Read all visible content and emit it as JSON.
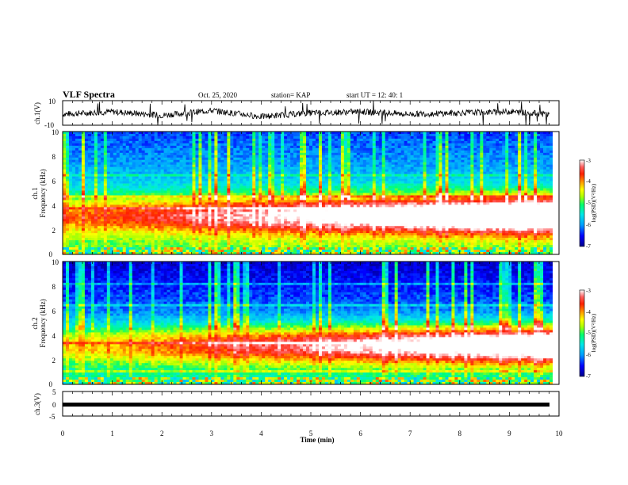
{
  "header": {
    "title": "VLF Spectra",
    "date": "Oct. 25, 2020",
    "station": "station= KAP",
    "start": "start  UT  =   12: 40: 1"
  },
  "colors": {
    "spectral_scale": [
      "#00008b",
      "#0000ff",
      "#0080ff",
      "#00e0e0",
      "#00ff80",
      "#9cff00",
      "#ffff00",
      "#ffa500",
      "#ff3000",
      "#ff2020",
      "#ffffff"
    ]
  },
  "chart_data": [
    {
      "type": "line",
      "panel": "ch.1 waveform",
      "ylabel": "ch.1(V)",
      "ylim": [
        -10,
        10
      ],
      "yticks": [
        "10",
        "-10"
      ],
      "x": [
        0,
        1,
        2,
        3,
        4,
        5,
        6,
        7,
        8,
        9,
        9.8
      ],
      "y": [
        -1,
        1,
        -2,
        2,
        -3,
        0,
        1,
        -1,
        0,
        1,
        -1
      ]
    },
    {
      "type": "heatmap",
      "panel": "ch.1 spectrogram",
      "ylabel": "ch.1\nFrequency (kHz)",
      "ylim": [
        0,
        10
      ],
      "yticks": [
        "0",
        "2",
        "4",
        "6",
        "8",
        "10"
      ],
      "colorbar": {
        "label": "log(PSD)(V²/Hz)",
        "range": [
          -7,
          -3
        ],
        "ticks": [
          "-3",
          "-4",
          "-5",
          "-6",
          "-7"
        ]
      }
    },
    {
      "type": "heatmap",
      "panel": "ch.2 spectrogram",
      "ylabel": "ch.2\nFrequency (kHz)",
      "ylim": [
        0,
        10
      ],
      "yticks": [
        "0",
        "2",
        "4",
        "6",
        "8",
        "10"
      ],
      "colorbar": {
        "label": "log(PSD)(V²/Hz)",
        "range": [
          -7,
          -3
        ],
        "ticks": [
          "-3",
          "-4",
          "-5",
          "-6",
          "-7"
        ]
      }
    },
    {
      "type": "line",
      "panel": "ch.3 waveform",
      "ylabel": "ch.3(V)",
      "ylim": [
        -5,
        5
      ],
      "yticks": [
        "5",
        "0",
        "-5"
      ],
      "x": [
        0,
        9.8
      ],
      "y": [
        0,
        0
      ]
    }
  ],
  "xaxis": {
    "label": "Time (min)",
    "range": [
      0,
      10
    ],
    "ticks": [
      "0",
      "1",
      "2",
      "3",
      "4",
      "5",
      "6",
      "7",
      "8",
      "9",
      "10"
    ]
  }
}
